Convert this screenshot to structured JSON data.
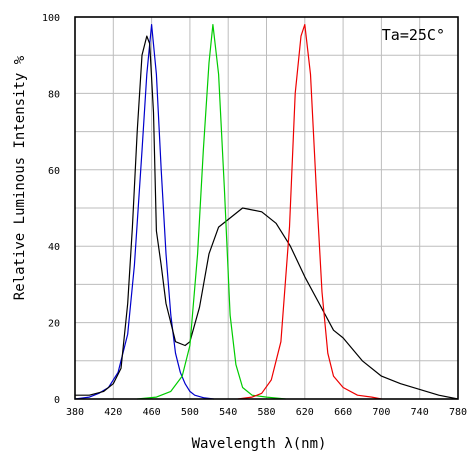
{
  "chart_data": {
    "type": "line",
    "xlabel": "Wavelength λ(nm)",
    "ylabel": "Relative Luminous Intensity %",
    "annotation": "Ta=25C°",
    "xlim": [
      380,
      780
    ],
    "ylim": [
      0,
      100
    ],
    "x_ticks": [
      380,
      420,
      460,
      500,
      540,
      580,
      620,
      660,
      700,
      740,
      780
    ],
    "y_ticks": [
      0,
      20,
      40,
      60,
      80,
      100
    ],
    "grid": true,
    "series": [
      {
        "color": "#0000cc",
        "points": [
          [
            380,
            0
          ],
          [
            395,
            0.5
          ],
          [
            405,
            1.5
          ],
          [
            415,
            3
          ],
          [
            425,
            7
          ],
          [
            435,
            17
          ],
          [
            442,
            35
          ],
          [
            450,
            65
          ],
          [
            455,
            85
          ],
          [
            460,
            98
          ],
          [
            465,
            85
          ],
          [
            470,
            60
          ],
          [
            475,
            38
          ],
          [
            480,
            22
          ],
          [
            485,
            12
          ],
          [
            490,
            7
          ],
          [
            495,
            4
          ],
          [
            500,
            2
          ],
          [
            505,
            1
          ],
          [
            515,
            0.3
          ],
          [
            525,
            0
          ]
        ]
      },
      {
        "color": "#000000",
        "points": [
          [
            380,
            1
          ],
          [
            395,
            1
          ],
          [
            410,
            2
          ],
          [
            420,
            4
          ],
          [
            428,
            8
          ],
          [
            435,
            25
          ],
          [
            440,
            45
          ],
          [
            445,
            70
          ],
          [
            450,
            90
          ],
          [
            455,
            95
          ],
          [
            458,
            93
          ],
          [
            462,
            75
          ],
          [
            465,
            44
          ],
          [
            470,
            35
          ],
          [
            475,
            25
          ],
          [
            480,
            20
          ],
          [
            485,
            15
          ],
          [
            495,
            14
          ],
          [
            500,
            15
          ],
          [
            510,
            24
          ],
          [
            520,
            38
          ],
          [
            530,
            45
          ],
          [
            540,
            47
          ],
          [
            555,
            50
          ],
          [
            575,
            49
          ],
          [
            590,
            46
          ],
          [
            605,
            40
          ],
          [
            620,
            32
          ],
          [
            635,
            25
          ],
          [
            650,
            18
          ],
          [
            660,
            16
          ],
          [
            680,
            10
          ],
          [
            700,
            6
          ],
          [
            720,
            4
          ],
          [
            740,
            2.5
          ],
          [
            760,
            1
          ],
          [
            780,
            0
          ]
        ]
      },
      {
        "color": "#00cc00",
        "points": [
          [
            445,
            0
          ],
          [
            465,
            0.5
          ],
          [
            480,
            2
          ],
          [
            492,
            6
          ],
          [
            500,
            14
          ],
          [
            508,
            38
          ],
          [
            514,
            65
          ],
          [
            520,
            88
          ],
          [
            524,
            98
          ],
          [
            530,
            85
          ],
          [
            536,
            55
          ],
          [
            542,
            22
          ],
          [
            548,
            9
          ],
          [
            555,
            3
          ],
          [
            565,
            1
          ],
          [
            580,
            0.5
          ],
          [
            600,
            0
          ]
        ]
      },
      {
        "color": "#ee0000",
        "points": [
          [
            550,
            0
          ],
          [
            565,
            0.5
          ],
          [
            575,
            1.5
          ],
          [
            585,
            5
          ],
          [
            595,
            15
          ],
          [
            604,
            45
          ],
          [
            610,
            80
          ],
          [
            616,
            95
          ],
          [
            620,
            98
          ],
          [
            626,
            85
          ],
          [
            632,
            55
          ],
          [
            638,
            28
          ],
          [
            644,
            12
          ],
          [
            650,
            6
          ],
          [
            660,
            3
          ],
          [
            675,
            1
          ],
          [
            690,
            0.5
          ],
          [
            700,
            0
          ]
        ]
      }
    ]
  }
}
